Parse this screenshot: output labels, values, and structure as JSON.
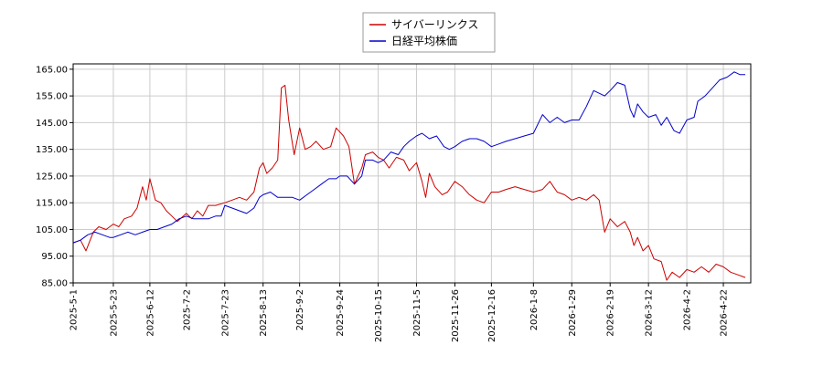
{
  "chart_data": {
    "type": "line",
    "title": "",
    "xlabel": "",
    "ylabel": "",
    "ylim": [
      85,
      167
    ],
    "xlim": [
      "2025-05-01",
      "2026-05-07"
    ],
    "yticks": [
      "85.00",
      "95.00",
      "105.00",
      "115.00",
      "125.00",
      "135.00",
      "145.00",
      "155.00",
      "165.00"
    ],
    "xticks": [
      "2025-5-1",
      "2025-5-23",
      "2025-6-12",
      "2025-7-2",
      "2025-7-23",
      "2025-8-13",
      "2025-9-2",
      "2025-9-24",
      "2025-10-15",
      "2025-11-5",
      "2025-11-26",
      "2025-12-16",
      "2026-1-8",
      "2026-1-29",
      "2026-2-19",
      "2026-3-12",
      "2026-4-2",
      "2026-4-22"
    ],
    "grid": true,
    "legend_position": "top-center",
    "series": [
      {
        "name": "サイバーリンクス",
        "color": "#cc0000",
        "points": [
          [
            "2025-05-01",
            100
          ],
          [
            "2025-05-05",
            101
          ],
          [
            "2025-05-08",
            97
          ],
          [
            "2025-05-12",
            104
          ],
          [
            "2025-05-15",
            106
          ],
          [
            "2025-05-19",
            105
          ],
          [
            "2025-05-23",
            107
          ],
          [
            "2025-05-26",
            106
          ],
          [
            "2025-05-29",
            109
          ],
          [
            "2025-06-02",
            110
          ],
          [
            "2025-06-05",
            113
          ],
          [
            "2025-06-08",
            121
          ],
          [
            "2025-06-10",
            116
          ],
          [
            "2025-06-12",
            124
          ],
          [
            "2025-06-15",
            116
          ],
          [
            "2025-06-18",
            115
          ],
          [
            "2025-06-21",
            112
          ],
          [
            "2025-06-24",
            110
          ],
          [
            "2025-06-27",
            108
          ],
          [
            "2025-07-02",
            111
          ],
          [
            "2025-07-05",
            109
          ],
          [
            "2025-07-08",
            112
          ],
          [
            "2025-07-11",
            110
          ],
          [
            "2025-07-14",
            114
          ],
          [
            "2025-07-18",
            114
          ],
          [
            "2025-07-23",
            115
          ],
          [
            "2025-07-27",
            116
          ],
          [
            "2025-07-31",
            117
          ],
          [
            "2025-08-04",
            116
          ],
          [
            "2025-08-08",
            119
          ],
          [
            "2025-08-11",
            128
          ],
          [
            "2025-08-13",
            130
          ],
          [
            "2025-08-15",
            126
          ],
          [
            "2025-08-18",
            128
          ],
          [
            "2025-08-21",
            131
          ],
          [
            "2025-08-23",
            158
          ],
          [
            "2025-08-25",
            159
          ],
          [
            "2025-08-27",
            146
          ],
          [
            "2025-08-30",
            133
          ],
          [
            "2025-09-02",
            143
          ],
          [
            "2025-09-05",
            135
          ],
          [
            "2025-09-08",
            136
          ],
          [
            "2025-09-11",
            138
          ],
          [
            "2025-09-15",
            135
          ],
          [
            "2025-09-19",
            136
          ],
          [
            "2025-09-22",
            143
          ],
          [
            "2025-09-26",
            140
          ],
          [
            "2025-09-29",
            136
          ],
          [
            "2025-10-02",
            122
          ],
          [
            "2025-10-06",
            128
          ],
          [
            "2025-10-08",
            133
          ],
          [
            "2025-10-12",
            134
          ],
          [
            "2025-10-15",
            132
          ],
          [
            "2025-10-18",
            131
          ],
          [
            "2025-10-21",
            128
          ],
          [
            "2025-10-25",
            132
          ],
          [
            "2025-10-29",
            131
          ],
          [
            "2025-11-01",
            127
          ],
          [
            "2025-11-05",
            130
          ],
          [
            "2025-11-08",
            123
          ],
          [
            "2025-11-10",
            117
          ],
          [
            "2025-11-12",
            126
          ],
          [
            "2025-11-15",
            121
          ],
          [
            "2025-11-19",
            118
          ],
          [
            "2025-11-22",
            119
          ],
          [
            "2025-11-26",
            123
          ],
          [
            "2025-11-30",
            121
          ],
          [
            "2025-12-04",
            118
          ],
          [
            "2025-12-08",
            116
          ],
          [
            "2025-12-12",
            115
          ],
          [
            "2025-12-16",
            119
          ],
          [
            "2025-12-20",
            119
          ],
          [
            "2025-12-24",
            120
          ],
          [
            "2025-12-29",
            121
          ],
          [
            "2026-01-03",
            120
          ],
          [
            "2026-01-08",
            119
          ],
          [
            "2026-01-13",
            120
          ],
          [
            "2026-01-17",
            123
          ],
          [
            "2026-01-21",
            119
          ],
          [
            "2026-01-25",
            118
          ],
          [
            "2026-01-29",
            116
          ],
          [
            "2026-02-02",
            117
          ],
          [
            "2026-02-06",
            116
          ],
          [
            "2026-02-10",
            118
          ],
          [
            "2026-02-13",
            116
          ],
          [
            "2026-02-16",
            104
          ],
          [
            "2026-02-19",
            109
          ],
          [
            "2026-02-23",
            106
          ],
          [
            "2026-02-27",
            108
          ],
          [
            "2026-03-02",
            104
          ],
          [
            "2026-03-04",
            99
          ],
          [
            "2026-03-06",
            102
          ],
          [
            "2026-03-09",
            97
          ],
          [
            "2026-03-12",
            99
          ],
          [
            "2026-03-15",
            94
          ],
          [
            "2026-03-19",
            93
          ],
          [
            "2026-03-22",
            86
          ],
          [
            "2026-03-25",
            89
          ],
          [
            "2026-03-29",
            87
          ],
          [
            "2026-04-02",
            90
          ],
          [
            "2026-04-06",
            89
          ],
          [
            "2026-04-10",
            91
          ],
          [
            "2026-04-14",
            89
          ],
          [
            "2026-04-18",
            92
          ],
          [
            "2026-04-22",
            91
          ],
          [
            "2026-04-26",
            89
          ],
          [
            "2026-04-30",
            88
          ],
          [
            "2026-05-04",
            87
          ]
        ]
      },
      {
        "name": "日経平均株価",
        "color": "#0000cc",
        "points": [
          [
            "2025-05-01",
            100
          ],
          [
            "2025-05-05",
            101
          ],
          [
            "2025-05-09",
            103
          ],
          [
            "2025-05-13",
            104
          ],
          [
            "2025-05-17",
            103
          ],
          [
            "2025-05-21",
            102
          ],
          [
            "2025-05-23",
            102
          ],
          [
            "2025-05-27",
            103
          ],
          [
            "2025-05-31",
            104
          ],
          [
            "2025-06-04",
            103
          ],
          [
            "2025-06-08",
            104
          ],
          [
            "2025-06-12",
            105
          ],
          [
            "2025-06-16",
            105
          ],
          [
            "2025-06-20",
            106
          ],
          [
            "2025-06-24",
            107
          ],
          [
            "2025-06-28",
            109
          ],
          [
            "2025-07-02",
            110
          ],
          [
            "2025-07-06",
            109
          ],
          [
            "2025-07-10",
            109
          ],
          [
            "2025-07-14",
            109
          ],
          [
            "2025-07-18",
            110
          ],
          [
            "2025-07-21",
            110
          ],
          [
            "2025-07-23",
            114
          ],
          [
            "2025-07-27",
            113
          ],
          [
            "2025-07-31",
            112
          ],
          [
            "2025-08-04",
            111
          ],
          [
            "2025-08-08",
            113
          ],
          [
            "2025-08-11",
            117
          ],
          [
            "2025-08-13",
            118
          ],
          [
            "2025-08-17",
            119
          ],
          [
            "2025-08-21",
            117
          ],
          [
            "2025-08-25",
            117
          ],
          [
            "2025-08-29",
            117
          ],
          [
            "2025-09-02",
            116
          ],
          [
            "2025-09-06",
            118
          ],
          [
            "2025-09-10",
            120
          ],
          [
            "2025-09-14",
            122
          ],
          [
            "2025-09-18",
            124
          ],
          [
            "2025-09-22",
            124
          ],
          [
            "2025-09-24",
            125
          ],
          [
            "2025-09-28",
            125
          ],
          [
            "2025-10-02",
            122
          ],
          [
            "2025-10-06",
            125
          ],
          [
            "2025-10-08",
            131
          ],
          [
            "2025-10-12",
            131
          ],
          [
            "2025-10-15",
            130
          ],
          [
            "2025-10-18",
            131
          ],
          [
            "2025-10-22",
            134
          ],
          [
            "2025-10-26",
            133
          ],
          [
            "2025-10-29",
            136
          ],
          [
            "2025-11-01",
            138
          ],
          [
            "2025-11-05",
            140
          ],
          [
            "2025-11-08",
            141
          ],
          [
            "2025-11-12",
            139
          ],
          [
            "2025-11-16",
            140
          ],
          [
            "2025-11-20",
            136
          ],
          [
            "2025-11-23",
            135
          ],
          [
            "2025-11-26",
            136
          ],
          [
            "2025-11-30",
            138
          ],
          [
            "2025-12-04",
            139
          ],
          [
            "2025-12-08",
            139
          ],
          [
            "2025-12-12",
            138
          ],
          [
            "2025-12-16",
            136
          ],
          [
            "2025-12-20",
            137
          ],
          [
            "2025-12-24",
            138
          ],
          [
            "2025-12-29",
            139
          ],
          [
            "2026-01-03",
            140
          ],
          [
            "2026-01-08",
            141
          ],
          [
            "2026-01-13",
            148
          ],
          [
            "2026-01-17",
            145
          ],
          [
            "2026-01-21",
            147
          ],
          [
            "2026-01-25",
            145
          ],
          [
            "2026-01-29",
            146
          ],
          [
            "2026-02-02",
            146
          ],
          [
            "2026-02-06",
            151
          ],
          [
            "2026-02-10",
            157
          ],
          [
            "2026-02-13",
            156
          ],
          [
            "2026-02-16",
            155
          ],
          [
            "2026-02-19",
            157
          ],
          [
            "2026-02-23",
            160
          ],
          [
            "2026-02-27",
            159
          ],
          [
            "2026-03-02",
            150
          ],
          [
            "2026-03-04",
            147
          ],
          [
            "2026-03-06",
            152
          ],
          [
            "2026-03-09",
            149
          ],
          [
            "2026-03-12",
            147
          ],
          [
            "2026-03-16",
            148
          ],
          [
            "2026-03-19",
            144
          ],
          [
            "2026-03-22",
            147
          ],
          [
            "2026-03-26",
            142
          ],
          [
            "2026-03-29",
            141
          ],
          [
            "2026-04-02",
            146
          ],
          [
            "2026-04-06",
            147
          ],
          [
            "2026-04-08",
            153
          ],
          [
            "2026-04-12",
            155
          ],
          [
            "2026-04-16",
            158
          ],
          [
            "2026-04-20",
            161
          ],
          [
            "2026-04-24",
            162
          ],
          [
            "2026-04-28",
            164
          ],
          [
            "2026-05-01",
            163
          ],
          [
            "2026-05-04",
            163
          ]
        ]
      }
    ]
  }
}
